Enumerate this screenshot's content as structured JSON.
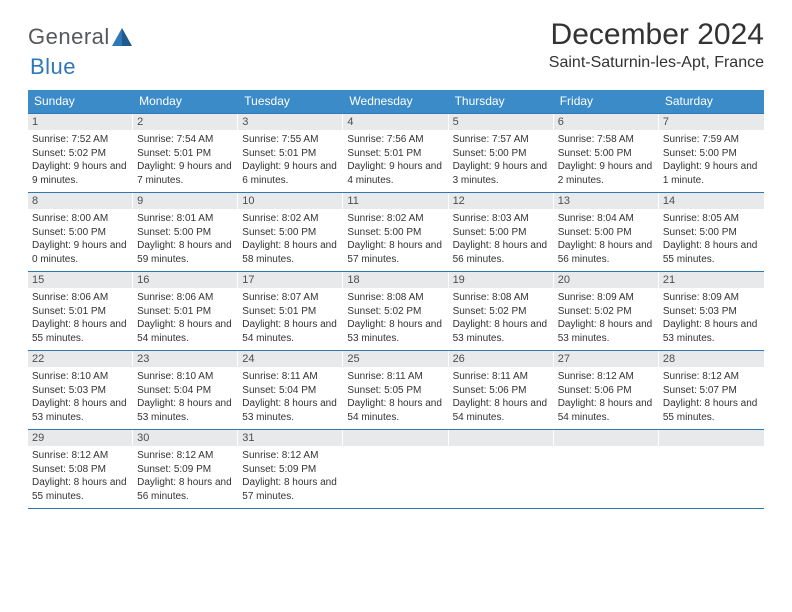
{
  "logo": {
    "general": "General",
    "blue": "Blue",
    "mark_color": "#2f78b7"
  },
  "header": {
    "month_title": "December 2024",
    "location": "Saint-Saturnin-les-Apt, France"
  },
  "colors": {
    "header_bg": "#3b8bc9",
    "row_border": "#2c79b5",
    "daynum_bg": "#e8e9ea",
    "page_bg": "#ffffff"
  },
  "weekdays": [
    "Sunday",
    "Monday",
    "Tuesday",
    "Wednesday",
    "Thursday",
    "Friday",
    "Saturday"
  ],
  "weeks": [
    [
      {
        "n": "1",
        "sr": "7:52 AM",
        "ss": "5:02 PM",
        "dl": "9 hours and 9 minutes."
      },
      {
        "n": "2",
        "sr": "7:54 AM",
        "ss": "5:01 PM",
        "dl": "9 hours and 7 minutes."
      },
      {
        "n": "3",
        "sr": "7:55 AM",
        "ss": "5:01 PM",
        "dl": "9 hours and 6 minutes."
      },
      {
        "n": "4",
        "sr": "7:56 AM",
        "ss": "5:01 PM",
        "dl": "9 hours and 4 minutes."
      },
      {
        "n": "5",
        "sr": "7:57 AM",
        "ss": "5:00 PM",
        "dl": "9 hours and 3 minutes."
      },
      {
        "n": "6",
        "sr": "7:58 AM",
        "ss": "5:00 PM",
        "dl": "9 hours and 2 minutes."
      },
      {
        "n": "7",
        "sr": "7:59 AM",
        "ss": "5:00 PM",
        "dl": "9 hours and 1 minute."
      }
    ],
    [
      {
        "n": "8",
        "sr": "8:00 AM",
        "ss": "5:00 PM",
        "dl": "9 hours and 0 minutes."
      },
      {
        "n": "9",
        "sr": "8:01 AM",
        "ss": "5:00 PM",
        "dl": "8 hours and 59 minutes."
      },
      {
        "n": "10",
        "sr": "8:02 AM",
        "ss": "5:00 PM",
        "dl": "8 hours and 58 minutes."
      },
      {
        "n": "11",
        "sr": "8:02 AM",
        "ss": "5:00 PM",
        "dl": "8 hours and 57 minutes."
      },
      {
        "n": "12",
        "sr": "8:03 AM",
        "ss": "5:00 PM",
        "dl": "8 hours and 56 minutes."
      },
      {
        "n": "13",
        "sr": "8:04 AM",
        "ss": "5:00 PM",
        "dl": "8 hours and 56 minutes."
      },
      {
        "n": "14",
        "sr": "8:05 AM",
        "ss": "5:00 PM",
        "dl": "8 hours and 55 minutes."
      }
    ],
    [
      {
        "n": "15",
        "sr": "8:06 AM",
        "ss": "5:01 PM",
        "dl": "8 hours and 55 minutes."
      },
      {
        "n": "16",
        "sr": "8:06 AM",
        "ss": "5:01 PM",
        "dl": "8 hours and 54 minutes."
      },
      {
        "n": "17",
        "sr": "8:07 AM",
        "ss": "5:01 PM",
        "dl": "8 hours and 54 minutes."
      },
      {
        "n": "18",
        "sr": "8:08 AM",
        "ss": "5:02 PM",
        "dl": "8 hours and 53 minutes."
      },
      {
        "n": "19",
        "sr": "8:08 AM",
        "ss": "5:02 PM",
        "dl": "8 hours and 53 minutes."
      },
      {
        "n": "20",
        "sr": "8:09 AM",
        "ss": "5:02 PM",
        "dl": "8 hours and 53 minutes."
      },
      {
        "n": "21",
        "sr": "8:09 AM",
        "ss": "5:03 PM",
        "dl": "8 hours and 53 minutes."
      }
    ],
    [
      {
        "n": "22",
        "sr": "8:10 AM",
        "ss": "5:03 PM",
        "dl": "8 hours and 53 minutes."
      },
      {
        "n": "23",
        "sr": "8:10 AM",
        "ss": "5:04 PM",
        "dl": "8 hours and 53 minutes."
      },
      {
        "n": "24",
        "sr": "8:11 AM",
        "ss": "5:04 PM",
        "dl": "8 hours and 53 minutes."
      },
      {
        "n": "25",
        "sr": "8:11 AM",
        "ss": "5:05 PM",
        "dl": "8 hours and 54 minutes."
      },
      {
        "n": "26",
        "sr": "8:11 AM",
        "ss": "5:06 PM",
        "dl": "8 hours and 54 minutes."
      },
      {
        "n": "27",
        "sr": "8:12 AM",
        "ss": "5:06 PM",
        "dl": "8 hours and 54 minutes."
      },
      {
        "n": "28",
        "sr": "8:12 AM",
        "ss": "5:07 PM",
        "dl": "8 hours and 55 minutes."
      }
    ],
    [
      {
        "n": "29",
        "sr": "8:12 AM",
        "ss": "5:08 PM",
        "dl": "8 hours and 55 minutes."
      },
      {
        "n": "30",
        "sr": "8:12 AM",
        "ss": "5:09 PM",
        "dl": "8 hours and 56 minutes."
      },
      {
        "n": "31",
        "sr": "8:12 AM",
        "ss": "5:09 PM",
        "dl": "8 hours and 57 minutes."
      },
      null,
      null,
      null,
      null
    ]
  ],
  "labels": {
    "sunrise": "Sunrise:",
    "sunset": "Sunset:",
    "daylight": "Daylight:"
  }
}
